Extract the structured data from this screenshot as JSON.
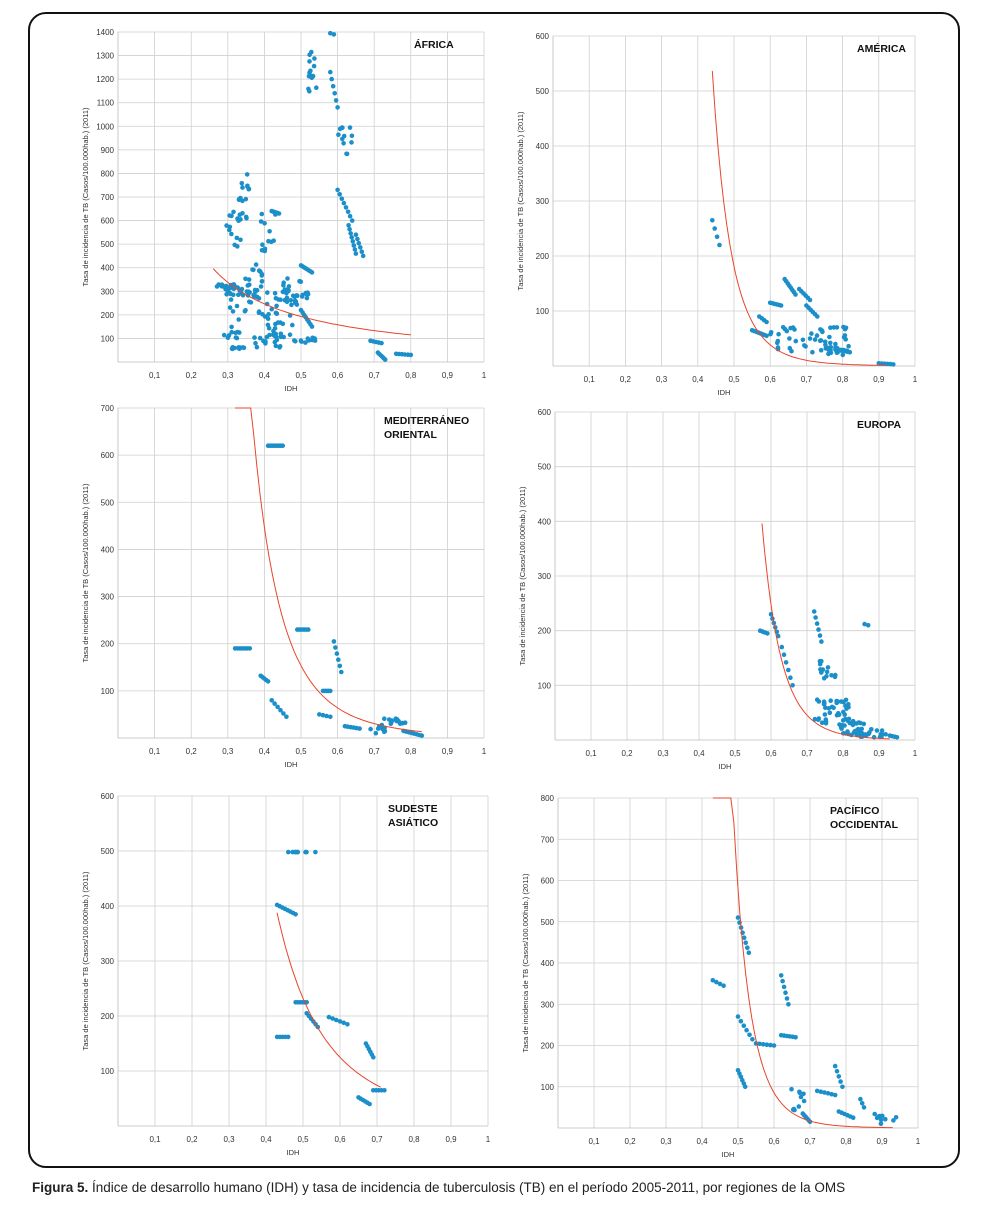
{
  "caption": {
    "label": "Figura 5.",
    "text": " Índice de desarrollo humano (IDH) y tasa de incidencia de tuberculosis (TB) en el período 2005-2011, por regiones de la OMS"
  },
  "colors": {
    "points": "#1b8fc9",
    "trend": "#e8452c",
    "grid": "#cfcfcf"
  },
  "chart_data": [
    {
      "type": "scatter",
      "title_lines": [
        "ÁFRICA"
      ],
      "xlabel": "IDH",
      "ylabel": "Tasa de incidencia de TB (Casos/100.000hab.) (2011)",
      "xlim": [
        0,
        1
      ],
      "ylim": [
        0,
        1400
      ],
      "xticks": [
        0.1,
        0.2,
        0.3,
        0.4,
        0.5,
        0.6,
        0.7,
        0.8,
        0.9,
        1
      ],
      "xtick_labels": [
        "0,1",
        "0,2",
        "0,3",
        "0,4",
        "0,5",
        "0,6",
        "0,7",
        "0,8",
        "0,9",
        "1"
      ],
      "yticks": [
        100,
        200,
        300,
        400,
        500,
        600,
        700,
        800,
        900,
        1000,
        1100,
        1200,
        1300,
        1400
      ],
      "trend": {
        "a": 90,
        "b": -1.1,
        "x0": 0.26,
        "x1": 0.8
      },
      "clusters": [
        [
          0.27,
          0.32,
          320,
          330,
          16
        ],
        [
          0.29,
          0.36,
          280,
          330,
          20
        ],
        [
          0.29,
          0.34,
          480,
          700,
          14
        ],
        [
          0.33,
          0.36,
          600,
          800,
          16
        ],
        [
          0.34,
          0.4,
          320,
          420,
          12
        ],
        [
          0.39,
          0.43,
          450,
          640,
          12
        ],
        [
          0.42,
          0.44,
          630,
          640,
          6
        ],
        [
          0.3,
          0.45,
          180,
          320,
          40
        ],
        [
          0.29,
          0.34,
          100,
          160,
          10
        ],
        [
          0.31,
          0.35,
          55,
          65,
          10
        ],
        [
          0.37,
          0.45,
          60,
          120,
          18
        ],
        [
          0.4,
          0.48,
          100,
          200,
          14
        ],
        [
          0.45,
          0.5,
          220,
          360,
          22
        ],
        [
          0.47,
          0.52,
          270,
          300,
          10
        ],
        [
          0.5,
          0.53,
          380,
          410,
          8
        ],
        [
          0.48,
          0.54,
          80,
          110,
          12
        ],
        [
          0.5,
          0.53,
          150,
          220,
          8
        ],
        [
          0.52,
          0.56,
          1140,
          1320,
          14
        ],
        [
          0.58,
          0.59,
          1390,
          1395,
          2
        ],
        [
          0.58,
          0.6,
          1080,
          1230,
          6
        ],
        [
          0.6,
          0.64,
          860,
          1000,
          12
        ],
        [
          0.6,
          0.64,
          600,
          730,
          8
        ],
        [
          0.63,
          0.65,
          460,
          580,
          8
        ],
        [
          0.65,
          0.67,
          450,
          540,
          6
        ],
        [
          0.69,
          0.72,
          80,
          90,
          5
        ],
        [
          0.71,
          0.73,
          10,
          40,
          6
        ],
        [
          0.76,
          0.8,
          30,
          35,
          6
        ]
      ]
    },
    {
      "type": "scatter",
      "title_lines": [
        "AMÉRICA"
      ],
      "xlabel": "IDH",
      "ylabel": "Tasa de incidencia de TB (Casos/100.000hab.) (2011)",
      "xlim": [
        0,
        1
      ],
      "ylim": [
        0,
        600
      ],
      "xticks": [
        0.1,
        0.2,
        0.3,
        0.4,
        0.5,
        0.6,
        0.7,
        0.8,
        0.9,
        1
      ],
      "xtick_labels": [
        "0,1",
        "0,2",
        "0,3",
        "0,4",
        "0,5",
        "0,6",
        "0,7",
        "0,8",
        "0,9",
        "1"
      ],
      "yticks": [
        100,
        200,
        300,
        400,
        500,
        600
      ],
      "trend": {
        "a": 0.5,
        "b": -8.5,
        "x0": 0.44,
        "x1": 0.92
      },
      "clusters": [
        [
          0.44,
          0.46,
          220,
          265,
          4
        ],
        [
          0.55,
          0.59,
          55,
          65,
          8
        ],
        [
          0.57,
          0.59,
          80,
          90,
          4
        ],
        [
          0.6,
          0.63,
          110,
          115,
          6
        ],
        [
          0.64,
          0.67,
          130,
          158,
          8
        ],
        [
          0.68,
          0.71,
          120,
          140,
          6
        ],
        [
          0.7,
          0.73,
          90,
          110,
          6
        ],
        [
          0.6,
          0.82,
          15,
          75,
          48
        ],
        [
          0.71,
          0.78,
          40,
          50,
          6
        ],
        [
          0.75,
          0.8,
          20,
          35,
          10
        ],
        [
          0.78,
          0.82,
          25,
          30,
          6
        ],
        [
          0.9,
          0.94,
          3,
          5,
          6
        ]
      ]
    },
    {
      "type": "scatter",
      "title_lines": [
        "MEDITERRÁNEO",
        "ORIENTAL"
      ],
      "xlabel": "IDH",
      "ylabel": "Tasa de incidencia de TB (Casos/100.000hab.) (2011)",
      "xlim": [
        0,
        1
      ],
      "ylim": [
        0,
        700
      ],
      "xticks": [
        0.1,
        0.2,
        0.3,
        0.4,
        0.5,
        0.6,
        0.7,
        0.8,
        0.9,
        1
      ],
      "xtick_labels": [
        "0,1",
        "0,2",
        "0,3",
        "0,4",
        "0,5",
        "0,6",
        "0,7",
        "0,8",
        "0,9",
        "1"
      ],
      "yticks": [
        100,
        200,
        300,
        400,
        500,
        600,
        700
      ],
      "trend": {
        "a": 5.5,
        "b": -4.8,
        "x0": 0.32,
        "x1": 0.83
      },
      "clusters": [
        [
          0.41,
          0.45,
          620,
          620,
          8
        ],
        [
          0.32,
          0.36,
          190,
          190,
          7
        ],
        [
          0.39,
          0.41,
          120,
          132,
          5
        ],
        [
          0.42,
          0.46,
          45,
          80,
          6
        ],
        [
          0.49,
          0.52,
          230,
          230,
          6
        ],
        [
          0.56,
          0.58,
          100,
          100,
          5
        ],
        [
          0.59,
          0.61,
          140,
          205,
          6
        ],
        [
          0.55,
          0.58,
          45,
          50,
          4
        ],
        [
          0.62,
          0.66,
          20,
          25,
          6
        ],
        [
          0.69,
          0.73,
          10,
          30,
          10
        ],
        [
          0.72,
          0.83,
          30,
          42,
          14
        ],
        [
          0.78,
          0.83,
          5,
          15,
          8
        ]
      ]
    },
    {
      "type": "scatter",
      "title_lines": [
        "EUROPA"
      ],
      "xlabel": "IDH",
      "ylabel": "Tasa de incidencia de TB (Casos/100.000hab.) (2011)",
      "xlim": [
        0,
        1
      ],
      "ylim": [
        0,
        600
      ],
      "xticks": [
        0.1,
        0.2,
        0.3,
        0.4,
        0.5,
        0.6,
        0.7,
        0.8,
        0.9,
        1
      ],
      "xtick_labels": [
        "0,1",
        "0,2",
        "0,3",
        "0,4",
        "0,5",
        "0,6",
        "0,7",
        "0,8",
        "0,9",
        "1"
      ],
      "yticks": [
        100,
        200,
        300,
        400,
        500,
        600
      ],
      "trend": {
        "a": 0.9,
        "b": -11,
        "x0": 0.575,
        "x1": 0.93
      },
      "clusters": [
        [
          0.57,
          0.59,
          195,
          200,
          4
        ],
        [
          0.6,
          0.62,
          190,
          230,
          6
        ],
        [
          0.63,
          0.66,
          100,
          170,
          6
        ],
        [
          0.72,
          0.74,
          180,
          235,
          6
        ],
        [
          0.73,
          0.78,
          110,
          150,
          14
        ],
        [
          0.72,
          0.76,
          30,
          80,
          14
        ],
        [
          0.76,
          0.82,
          45,
          75,
          20
        ],
        [
          0.78,
          0.86,
          15,
          40,
          18
        ],
        [
          0.8,
          0.92,
          5,
          20,
          30
        ],
        [
          0.86,
          0.87,
          210,
          212,
          2
        ],
        [
          0.93,
          0.95,
          5,
          8,
          4
        ]
      ]
    },
    {
      "type": "scatter",
      "title_lines": [
        "SUDESTE",
        "ASIÁTICO"
      ],
      "xlabel": "IDH",
      "ylabel": "Tasa de incidencia de TB (Casos/100.000hab.) (2011)",
      "xlim": [
        0,
        1
      ],
      "ylim": [
        0,
        600
      ],
      "xticks": [
        0.1,
        0.2,
        0.3,
        0.4,
        0.5,
        0.6,
        0.7,
        0.8,
        0.9,
        1
      ],
      "xtick_labels": [
        "0,1",
        "0,2",
        "0,3",
        "0,4",
        "0,5",
        "0,6",
        "0,7",
        "0,8",
        "0,9",
        "1"
      ],
      "yticks": [
        100,
        200,
        300,
        400,
        500,
        600
      ],
      "trend": {
        "a": 22,
        "b": -3.4,
        "x0": 0.43,
        "x1": 0.71
      },
      "clusters": [
        [
          0.46,
          0.57,
          498,
          498,
          9
        ],
        [
          0.43,
          0.48,
          385,
          402,
          8
        ],
        [
          0.43,
          0.46,
          162,
          162,
          5
        ],
        [
          0.48,
          0.51,
          225,
          225,
          6
        ],
        [
          0.51,
          0.54,
          180,
          205,
          6
        ],
        [
          0.57,
          0.62,
          185,
          198,
          6
        ],
        [
          0.67,
          0.69,
          125,
          150,
          6
        ],
        [
          0.65,
          0.68,
          40,
          52,
          6
        ],
        [
          0.69,
          0.72,
          65,
          65,
          5
        ]
      ]
    },
    {
      "type": "scatter",
      "title_lines": [
        "PACÍFICO",
        "OCCIDENTAL"
      ],
      "xlabel": "IDH",
      "ylabel": "Tasa de incidencia de TB (Casos/100.000hab.) (2011)",
      "xlim": [
        0,
        1
      ],
      "ylim": [
        0,
        800
      ],
      "xticks": [
        0.1,
        0.2,
        0.3,
        0.4,
        0.5,
        0.6,
        0.7,
        0.8,
        0.9,
        1
      ],
      "xtick_labels": [
        "0,1",
        "0,2",
        "0,3",
        "0,4",
        "0,5",
        "0,6",
        "0,7",
        "0,8",
        "0,9",
        "1"
      ],
      "yticks": [
        100,
        200,
        300,
        400,
        500,
        600,
        700,
        800
      ],
      "trend": {
        "a": 0.4,
        "b": -10.5,
        "x0": 0.43,
        "x1": 0.93
      },
      "clusters": [
        [
          0.43,
          0.46,
          345,
          358,
          4
        ],
        [
          0.5,
          0.53,
          425,
          510,
          8
        ],
        [
          0.5,
          0.54,
          215,
          270,
          6
        ],
        [
          0.5,
          0.52,
          100,
          140,
          6
        ],
        [
          0.55,
          0.6,
          200,
          205,
          6
        ],
        [
          0.62,
          0.64,
          300,
          370,
          6
        ],
        [
          0.62,
          0.66,
          220,
          225,
          6
        ],
        [
          0.64,
          0.69,
          40,
          95,
          10
        ],
        [
          0.68,
          0.7,
          15,
          35,
          6
        ],
        [
          0.72,
          0.77,
          80,
          90,
          6
        ],
        [
          0.77,
          0.79,
          100,
          150,
          5
        ],
        [
          0.78,
          0.82,
          25,
          40,
          6
        ],
        [
          0.84,
          0.85,
          50,
          70,
          3
        ],
        [
          0.87,
          0.94,
          10,
          35,
          10
        ]
      ]
    }
  ]
}
